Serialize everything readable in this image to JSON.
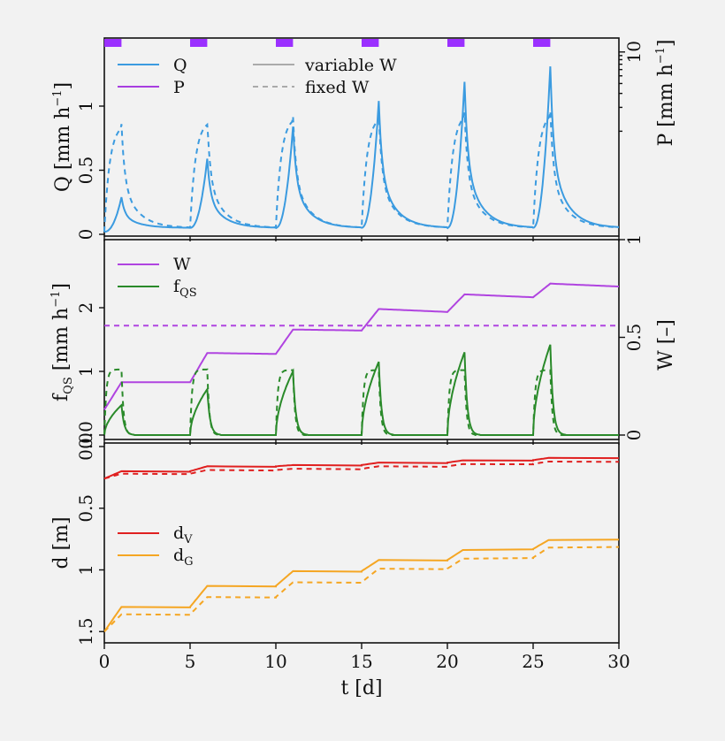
{
  "colors": {
    "Q": "#3b9be0",
    "P": "#a83ee0",
    "W": "#b044e0",
    "fQS": "#2a8a2a",
    "dV": "#e02020",
    "dG": "#f5a623",
    "legend_grey": "#aaaaaa",
    "rain_bar": "#9b30ff"
  },
  "chart_data": [
    {
      "type": "line",
      "panel": "top",
      "xlim": [
        0,
        30
      ],
      "ylim": [
        0,
        1.5
      ],
      "ylabel_left": "Q [mm h",
      "ylabel_left_sup": "−1",
      "ylabel_left_end": "]",
      "ylabel_right": "P [mm h",
      "ylabel_right_sup": "−1",
      "ylabel_right_end": "]",
      "yticks_left": [
        {
          "v": 0,
          "label": "0"
        },
        {
          "v": 0.5,
          "label": "0.5"
        },
        {
          "v": 1,
          "label": "1"
        }
      ],
      "yticks_right": [
        {
          "v": 10,
          "label": "10"
        }
      ],
      "right_scale": "log",
      "right_ylim": [
        0.05,
        15
      ],
      "rain_events": [
        {
          "start": 0.0,
          "end": 1.0,
          "intensity": 15
        },
        {
          "start": 5.0,
          "end": 6.0,
          "intensity": 15
        },
        {
          "start": 10.0,
          "end": 11.0,
          "intensity": 15
        },
        {
          "start": 15.0,
          "end": 16.0,
          "intensity": 15
        },
        {
          "start": 20.0,
          "end": 21.0,
          "intensity": 15
        },
        {
          "start": 25.0,
          "end": 26.0,
          "intensity": 15
        }
      ],
      "legend": [
        {
          "key": "Q",
          "label": "Q"
        },
        {
          "key": "P",
          "label": "P"
        },
        {
          "key": "variable",
          "label": "variable W"
        },
        {
          "key": "fixed",
          "label": "fixed W"
        }
      ],
      "series": [
        {
          "name": "Q",
          "style": "solid",
          "base": 0.05,
          "pre": 0.02,
          "peaks": [
            0.29,
            0.59,
            0.84,
            1.04,
            1.19,
            1.31
          ]
        },
        {
          "name": "Q",
          "style": "dashed",
          "base": 0.05,
          "pre": 0.02,
          "peaks": [
            0.86,
            0.89,
            0.92,
            0.93,
            0.95,
            0.96
          ]
        }
      ]
    },
    {
      "type": "line",
      "panel": "middle",
      "xlim": [
        0,
        30
      ],
      "ylim": [
        0,
        2.8
      ],
      "right_ylim": [
        0,
        1
      ],
      "ylabel_left": "f",
      "ylabel_left_sub": "QS",
      "ylabel_left_mid": " [mm h",
      "ylabel_left_sup": "−1",
      "ylabel_left_end": "]",
      "ylabel_right": "W [–]",
      "yticks_left": [
        {
          "v": 0,
          "label": "0.0"
        },
        {
          "v": 1,
          "label": "1"
        },
        {
          "v": 2,
          "label": "2"
        }
      ],
      "yticks_right": [
        {
          "v": 0,
          "label": "0"
        },
        {
          "v": 0.5,
          "label": "0.5"
        },
        {
          "v": 1,
          "label": "1"
        }
      ],
      "legend": [
        {
          "key": "W",
          "label": "W",
          "sub": ""
        },
        {
          "key": "fQS",
          "label": "f",
          "sub": "QS"
        }
      ],
      "W_variable": {
        "steps": [
          {
            "t0": 0,
            "t1": 1.0,
            "w0": 0.13,
            "w1": 0.27
          },
          {
            "t0": 1.0,
            "t1": 5.0,
            "w0": 0.27,
            "w1": 0.27
          },
          {
            "t0": 5.0,
            "t1": 6.0,
            "w0": 0.27,
            "w1": 0.42
          },
          {
            "t0": 6.0,
            "t1": 10.0,
            "w0": 0.42,
            "w1": 0.415
          },
          {
            "t0": 10.0,
            "t1": 11.0,
            "w0": 0.415,
            "w1": 0.54
          },
          {
            "t0": 11.0,
            "t1": 15.0,
            "w0": 0.54,
            "w1": 0.535
          },
          {
            "t0": 15.0,
            "t1": 16.0,
            "w0": 0.535,
            "w1": 0.645
          },
          {
            "t0": 16.0,
            "t1": 20.0,
            "w0": 0.645,
            "w1": 0.63
          },
          {
            "t0": 20.0,
            "t1": 21.0,
            "w0": 0.63,
            "w1": 0.72
          },
          {
            "t0": 21.0,
            "t1": 25.0,
            "w0": 0.72,
            "w1": 0.705
          },
          {
            "t0": 25.0,
            "t1": 26.0,
            "w0": 0.705,
            "w1": 0.775
          },
          {
            "t0": 26.0,
            "t1": 30.0,
            "w0": 0.775,
            "w1": 0.76
          }
        ]
      },
      "W_fixed": 0.56,
      "fQS_variable_peaks": [
        0.47,
        0.72,
        1.0,
        1.15,
        1.3,
        1.42
      ],
      "fQS_fixed_peaks": [
        1.03,
        1.03,
        1.02,
        1.02,
        1.02,
        1.02
      ]
    },
    {
      "type": "line",
      "panel": "bottom",
      "xlim": [
        0,
        30
      ],
      "ylim": [
        1.5,
        0
      ],
      "ylabel": "d [m]",
      "xlabel": "t [d]",
      "yticks": [
        {
          "v": 0,
          "label": "0.0"
        },
        {
          "v": 0.5,
          "label": "0.5"
        },
        {
          "v": 1,
          "label": "1"
        },
        {
          "v": 1.5,
          "label": "1.5"
        }
      ],
      "xticks": [
        {
          "v": 0,
          "label": "0"
        },
        {
          "v": 5,
          "label": "5"
        },
        {
          "v": 10,
          "label": "10"
        },
        {
          "v": 15,
          "label": "15"
        },
        {
          "v": 20,
          "label": "20"
        },
        {
          "v": 25,
          "label": "25"
        },
        {
          "v": 30,
          "label": "30"
        }
      ],
      "legend": [
        {
          "key": "dV",
          "label": "d",
          "sub": "V"
        },
        {
          "key": "dG",
          "label": "d",
          "sub": "G"
        }
      ],
      "dV_variable": [
        0.26,
        0.2,
        0.16,
        0.15,
        0.13,
        0.11,
        0.09
      ],
      "dV_fixed": [
        0.26,
        0.22,
        0.19,
        0.18,
        0.16,
        0.14,
        0.12
      ],
      "dG_variable": [
        1.5,
        1.3,
        1.13,
        1.01,
        0.92,
        0.83,
        0.75
      ],
      "dG_fixed": [
        1.5,
        1.36,
        1.22,
        1.1,
        0.99,
        0.9,
        0.81
      ]
    }
  ]
}
